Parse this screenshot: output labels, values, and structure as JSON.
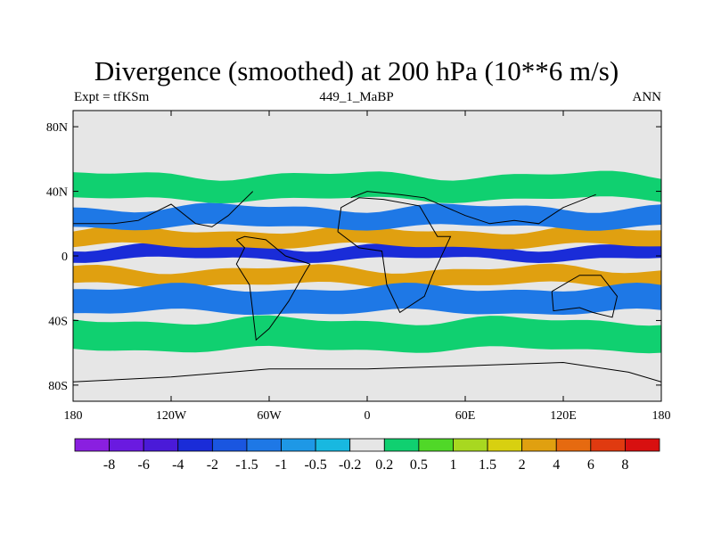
{
  "chart_data": {
    "type": "heatmap",
    "title": "Divergence (smoothed) at 200 hPa (10**6 m/s)",
    "subtitle_left": "Expt = tfKSm",
    "subtitle_center": "449_1_MaBP",
    "subtitle_right": "ANN",
    "x_ticks": [
      "180",
      "120W",
      "60W",
      "0",
      "60E",
      "120E",
      "180"
    ],
    "x_values": [
      -180,
      -120,
      -60,
      0,
      60,
      120,
      180
    ],
    "y_ticks": [
      "80N",
      "40N",
      "0",
      "40S",
      "80S"
    ],
    "y_values": [
      80,
      40,
      0,
      -40,
      -80
    ],
    "xlim": [
      -180,
      180
    ],
    "ylim": [
      -90,
      90
    ],
    "colorbar": {
      "labels": [
        "-8",
        "-6",
        "-4",
        "-2",
        "-1.5",
        "-1",
        "-0.5",
        "-0.2",
        "0.2",
        "0.5",
        "1",
        "1.5",
        "2",
        "4",
        "6",
        "8"
      ],
      "levels": [
        -8,
        -6,
        -4,
        -2,
        -1.5,
        -1,
        -0.5,
        -0.2,
        0.2,
        0.5,
        1,
        1.5,
        2,
        4,
        6,
        8
      ],
      "colors": [
        "#8a1fe0",
        "#6a1ae0",
        "#4a1ad8",
        "#1a2cd8",
        "#1a56e0",
        "#1e78e6",
        "#1e98e6",
        "#18b8e0",
        "#e6e6e6",
        "#10d070",
        "#50d828",
        "#a8d820",
        "#d8d010",
        "#e0a010",
        "#e66a10",
        "#e03a10",
        "#d81010"
      ]
    },
    "bands": [
      {
        "lat": [
          -2,
          6
        ],
        "value": -4
      },
      {
        "lat": [
          6,
          16
        ],
        "value": 3
      },
      {
        "lat": [
          -18,
          -8
        ],
        "value": 3
      },
      {
        "lat": [
          18,
          30
        ],
        "value": -1.5
      },
      {
        "lat": [
          -35,
          -20
        ],
        "value": -1.5
      },
      {
        "lat": [
          35,
          50
        ],
        "value": 0.4
      },
      {
        "lat": [
          -58,
          -40
        ],
        "value": 0.4
      }
    ]
  },
  "background_value_color": "#e6e6e6",
  "coast_color": "#000000"
}
